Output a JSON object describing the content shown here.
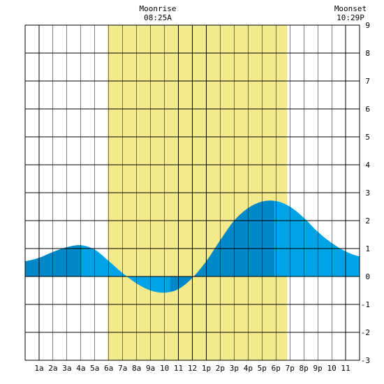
{
  "chart_data": {
    "type": "area",
    "title": "",
    "xlabel": "",
    "ylabel": "",
    "xlim": [
      0,
      24
    ],
    "ylim": [
      -3,
      9
    ],
    "y_ticks": [
      9,
      8,
      7,
      6,
      5,
      4,
      3,
      2,
      1,
      0,
      -1,
      -2,
      -3
    ],
    "x_ticks": [
      {
        "x": 1,
        "label": "1a"
      },
      {
        "x": 2,
        "label": "2a"
      },
      {
        "x": 3,
        "label": "3a"
      },
      {
        "x": 4,
        "label": "4a"
      },
      {
        "x": 5,
        "label": "5a"
      },
      {
        "x": 6,
        "label": "6a"
      },
      {
        "x": 7,
        "label": "7a"
      },
      {
        "x": 8,
        "label": "8a"
      },
      {
        "x": 9,
        "label": "9a"
      },
      {
        "x": 10,
        "label": "10"
      },
      {
        "x": 11,
        "label": "11"
      },
      {
        "x": 12,
        "label": "12"
      },
      {
        "x": 13,
        "label": "1p"
      },
      {
        "x": 14,
        "label": "2p"
      },
      {
        "x": 15,
        "label": "3p"
      },
      {
        "x": 16,
        "label": "4p"
      },
      {
        "x": 17,
        "label": "5p"
      },
      {
        "x": 18,
        "label": "6p"
      },
      {
        "x": 19,
        "label": "7p"
      },
      {
        "x": 20,
        "label": "8p"
      },
      {
        "x": 21,
        "label": "9p"
      },
      {
        "x": 22,
        "label": "10"
      },
      {
        "x": 23,
        "label": "11"
      }
    ],
    "grid": true,
    "moon_window": {
      "start": 5.9,
      "end": 18.8
    },
    "moonrise": {
      "label": "Moonrise",
      "time": "08:25A"
    },
    "moonset": {
      "label": "Moonset",
      "time": "10:29P"
    },
    "tide_extremes": [
      {
        "x": 4.1,
        "y": 1.1,
        "kind": "high"
      },
      {
        "x": 10.4,
        "y": -0.6,
        "kind": "low"
      },
      {
        "x": 17.9,
        "y": 2.7,
        "kind": "high"
      }
    ],
    "tide_series": {
      "x": [
        0,
        1,
        2,
        3,
        4,
        5,
        6,
        7,
        8,
        9,
        10,
        11,
        12,
        13,
        14,
        15,
        16,
        17,
        18,
        19,
        20,
        21,
        22,
        23,
        24
      ],
      "values": [
        0.55,
        0.67,
        0.88,
        1.05,
        1.12,
        0.96,
        0.55,
        0.12,
        -0.25,
        -0.5,
        -0.58,
        -0.45,
        -0.05,
        0.55,
        1.3,
        2.0,
        2.45,
        2.68,
        2.7,
        2.5,
        2.1,
        1.6,
        1.2,
        0.9,
        0.72
      ]
    },
    "colors": {
      "moon_fill": "#f2ea8c",
      "tide_dark": "#0088c8",
      "tide_light": "#00a3e6",
      "grid": "#000000"
    }
  }
}
